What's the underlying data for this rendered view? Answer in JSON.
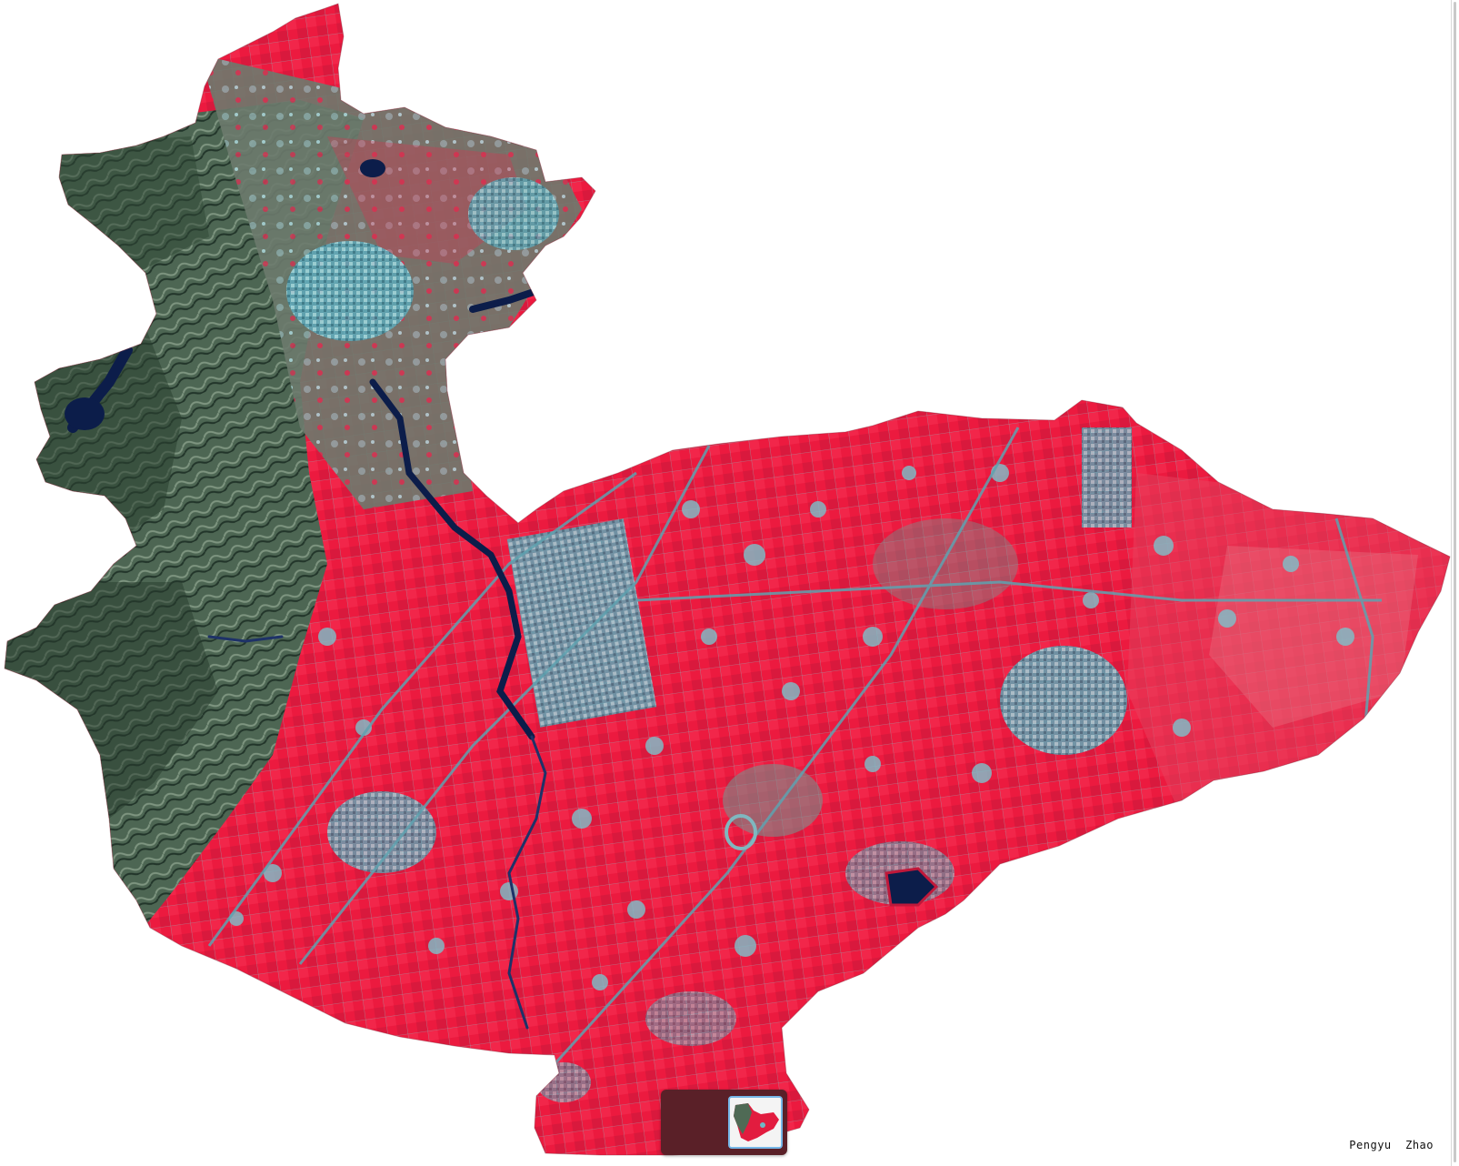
{
  "viewer": {
    "author_text": "Pengyu  Zhao"
  },
  "map": {
    "imagery": "false-color-satellite",
    "colors": {
      "background": "#ffffff",
      "vegetation": "#ee1c3e",
      "vegetation_dark": "#c8183a",
      "mountain": "#4f6a55",
      "mountain_dark": "#233629",
      "urban": "#6fb8c4",
      "urban_dark": "#3e7f8e",
      "water": "#0c1d4a"
    }
  },
  "thumbnail_strip": {
    "selected_index": 0,
    "count": 1,
    "colors": {
      "strip": "#5a2028",
      "selected_border": "#76b7e8"
    }
  }
}
